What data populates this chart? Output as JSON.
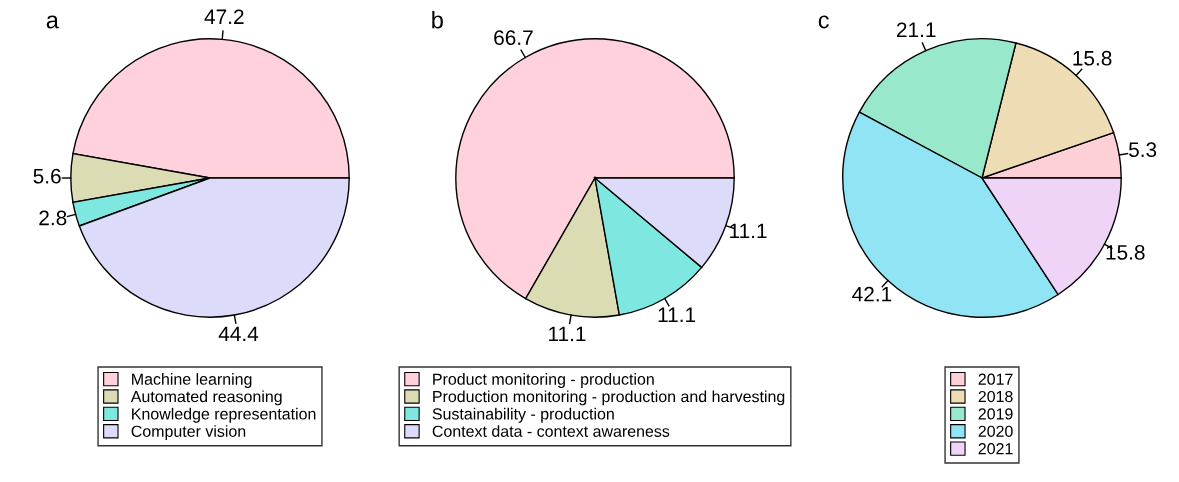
{
  "chart_data": [
    {
      "type": "pie",
      "title": "a",
      "categories": [
        "Machine learning",
        "Automated reasoning",
        "Knowledge representation",
        "Computer vision"
      ],
      "values": [
        47.2,
        5.6,
        2.8,
        44.4
      ],
      "colors": [
        "#ffd1dc",
        "#dcdcb4",
        "#7ee8e0",
        "#dcdcfa"
      ],
      "data_labels": true,
      "legend": "bottom"
    },
    {
      "type": "pie",
      "title": "b",
      "categories": [
        "Product monitoring - production",
        "Production monitoring - production and harvesting",
        "Sustainability - production",
        "Context data - context awareness"
      ],
      "values": [
        66.7,
        11.1,
        11.1,
        11.1
      ],
      "colors": [
        "#ffd1dc",
        "#dcdcb4",
        "#7ee8e0",
        "#dcdcfa"
      ],
      "data_labels": true,
      "legend": "bottom"
    },
    {
      "type": "pie",
      "title": "c",
      "categories": [
        "2017",
        "2018",
        "2019",
        "2020",
        "2021"
      ],
      "values": [
        5.3,
        15.8,
        21.1,
        42.1,
        15.8
      ],
      "colors": [
        "#fdd0d8",
        "#eedcb4",
        "#98e8cc",
        "#90e4f4",
        "#f0d4f8"
      ],
      "data_labels": true,
      "legend": "bottom"
    }
  ]
}
